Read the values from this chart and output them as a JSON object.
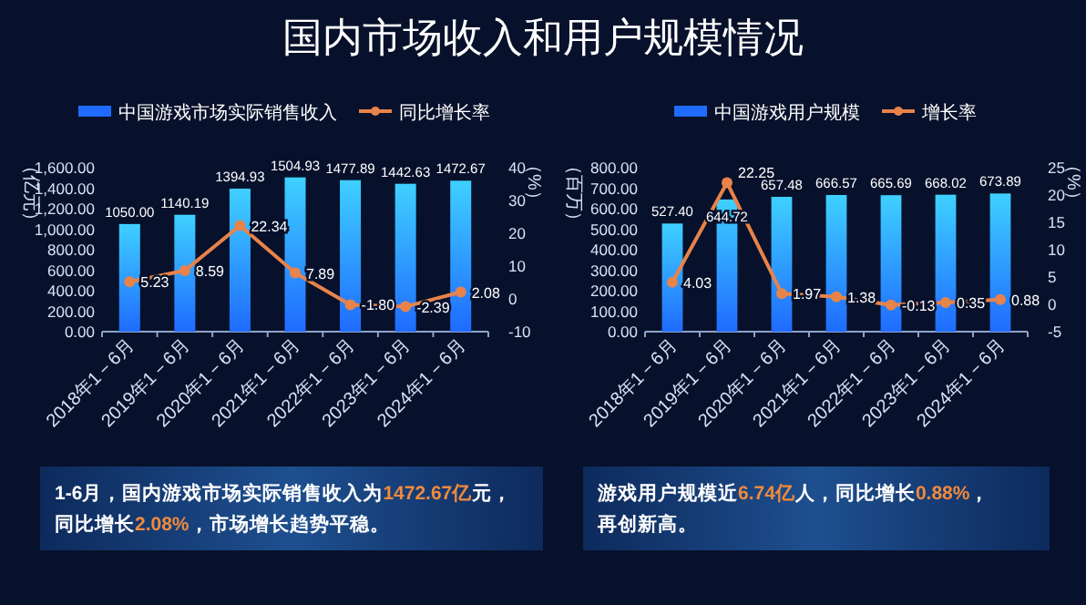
{
  "chart_data": [
    {
      "type": "bar",
      "title": "国内市场收入和用户规模情况",
      "categories": [
        "2018年1－6月",
        "2019年1－6月",
        "2020年1－6月",
        "2021年1－6月",
        "2022年1－6月",
        "2023年1－6月",
        "2024年1－6月"
      ],
      "ylabel": "（亿元）",
      "y2label": "（%）",
      "ylim": [
        0,
        1600
      ],
      "yticks": [
        {
          "value": 0,
          "label": "0.00"
        },
        {
          "value": 200,
          "label": "200.00"
        },
        {
          "value": 400,
          "label": "400.00"
        },
        {
          "value": 600,
          "label": "600.00"
        },
        {
          "value": 800,
          "label": "800.00"
        },
        {
          "value": 1000,
          "label": "1,000.00"
        },
        {
          "value": 1200,
          "label": "1,200.00"
        },
        {
          "value": 1400,
          "label": "1,400.00"
        },
        {
          "value": 1600,
          "label": "1,600.00"
        }
      ],
      "y2lim": [
        -10,
        40
      ],
      "y2ticks": [
        -10,
        0,
        10,
        20,
        30,
        40
      ],
      "legend": "top",
      "marker": "circle",
      "series": [
        {
          "name": "中国游戏市场实际销售收入",
          "type": "bar",
          "color": "#1f6bff",
          "values": [
            1050.0,
            1140.19,
            1394.93,
            1504.93,
            1477.89,
            1442.63,
            1472.67
          ],
          "value_labels": [
            "1050.00",
            "1140.19",
            "1394.93",
            "1504.93",
            "1477.89",
            "1442.63",
            "1472.67"
          ]
        },
        {
          "name": "同比增长率",
          "type": "line",
          "axis": "y2",
          "color": "#e8834a",
          "values": [
            5.23,
            8.59,
            22.34,
            7.89,
            -1.8,
            -2.39,
            2.08
          ],
          "value_labels": [
            "5.23",
            "8.59",
            "22.34",
            "7.89",
            "-1.80",
            "-2.39",
            "2.08"
          ]
        }
      ]
    },
    {
      "type": "bar",
      "categories": [
        "2018年1－6月",
        "2019年1－6月",
        "2020年1－6月",
        "2021年1－6月",
        "2022年1－6月",
        "2023年1－6月",
        "2024年1－6月"
      ],
      "ylabel": "（百万）",
      "y2label": "（%）",
      "ylim": [
        0,
        800
      ],
      "yticks": [
        {
          "value": 0,
          "label": "0.00"
        },
        {
          "value": 100,
          "label": "100.00"
        },
        {
          "value": 200,
          "label": "200.00"
        },
        {
          "value": 300,
          "label": "300.00"
        },
        {
          "value": 400,
          "label": "400.00"
        },
        {
          "value": 500,
          "label": "500.00"
        },
        {
          "value": 600,
          "label": "600.00"
        },
        {
          "value": 700,
          "label": "700.00"
        },
        {
          "value": 800,
          "label": "800.00"
        }
      ],
      "y2lim": [
        -5,
        25
      ],
      "y2ticks": [
        -5,
        0,
        5,
        10,
        15,
        20,
        25
      ],
      "legend": "top",
      "marker": "circle",
      "series": [
        {
          "name": "中国游戏用户规模",
          "type": "bar",
          "color": "#1f6bff",
          "values": [
            527.4,
            644.72,
            657.48,
            666.57,
            665.69,
            668.02,
            673.89
          ],
          "value_labels": [
            "527.40",
            "644.72",
            "657.48",
            "666.57",
            "665.69",
            "668.02",
            "673.89"
          ]
        },
        {
          "name": "增长率",
          "type": "line",
          "axis": "y2",
          "color": "#e8834a",
          "values": [
            4.03,
            22.25,
            1.97,
            1.38,
            -0.13,
            0.35,
            0.88
          ],
          "value_labels": [
            "4.03",
            "22.25",
            "1.97",
            "1.38",
            "-0.13",
            "0.35",
            "0.88"
          ]
        }
      ]
    },
    {
      "type": "other",
      "annotations": [
        "1-6月，国内游戏市场实际销售收入为1472.67亿元，",
        "同比增长2.08%，市场增长趋势平稳。"
      ]
    },
    {
      "type": "other",
      "annotations": [
        "游戏用户规模近6.74亿人，同比增长0.88%，",
        "再创新高。"
      ]
    }
  ]
}
